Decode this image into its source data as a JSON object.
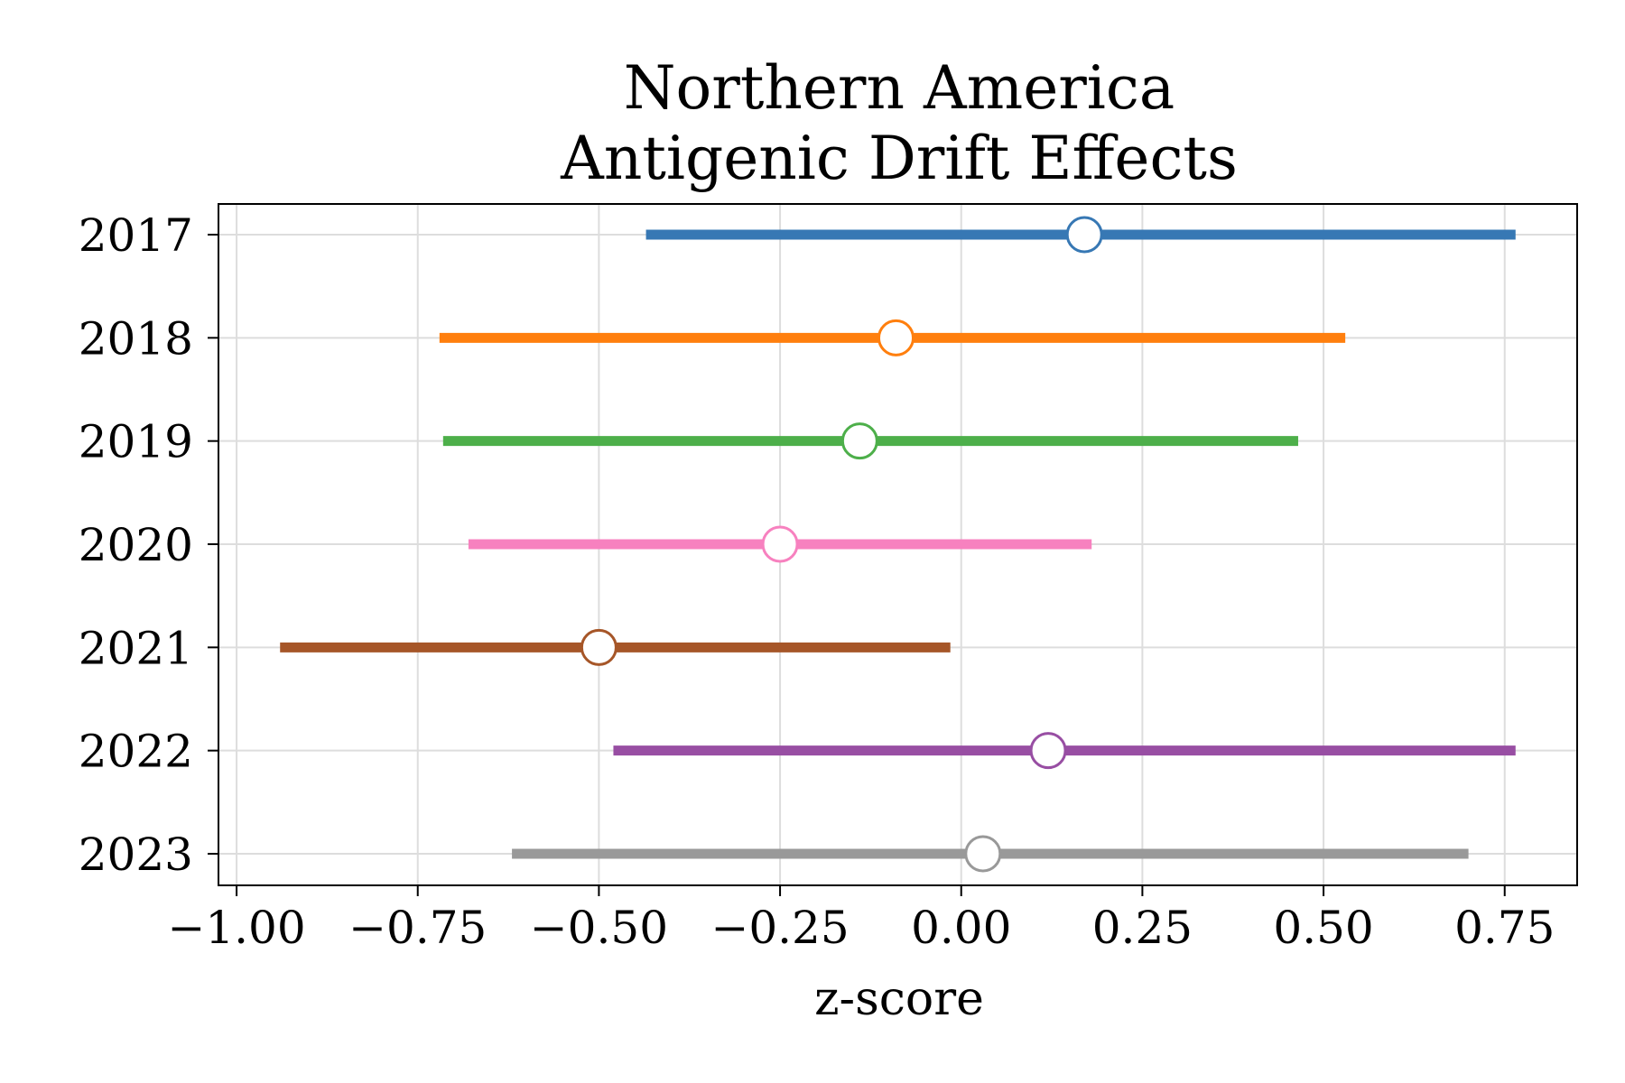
{
  "chart_data": {
    "type": "forest",
    "title_lines": [
      "Northern America",
      "Antigenic Drift Effects"
    ],
    "xlabel": "z-score",
    "ylabel": "",
    "xlim": [
      -1.025,
      0.85
    ],
    "xticks": [
      -1.0,
      -0.75,
      -0.5,
      -0.25,
      0.0,
      0.25,
      0.5,
      0.75
    ],
    "xtick_labels": [
      "−1.00",
      "−0.75",
      "−0.50",
      "−0.25",
      "0.00",
      "0.25",
      "0.50",
      "0.75"
    ],
    "grid": true,
    "series": [
      {
        "category": "2017",
        "estimate": 0.17,
        "low": -0.435,
        "high": 0.765,
        "color": "#3778b4"
      },
      {
        "category": "2018",
        "estimate": -0.09,
        "low": -0.72,
        "high": 0.53,
        "color": "#ff7f0e"
      },
      {
        "category": "2019",
        "estimate": -0.14,
        "low": -0.715,
        "high": 0.465,
        "color": "#4daf4a"
      },
      {
        "category": "2020",
        "estimate": -0.25,
        "low": -0.68,
        "high": 0.18,
        "color": "#f781bf"
      },
      {
        "category": "2021",
        "estimate": -0.5,
        "low": -0.94,
        "high": -0.015,
        "color": "#a65628"
      },
      {
        "category": "2022",
        "estimate": 0.12,
        "low": -0.48,
        "high": 0.765,
        "color": "#984ea3"
      },
      {
        "category": "2023",
        "estimate": 0.03,
        "low": -0.62,
        "high": 0.7,
        "color": "#999999"
      }
    ]
  }
}
